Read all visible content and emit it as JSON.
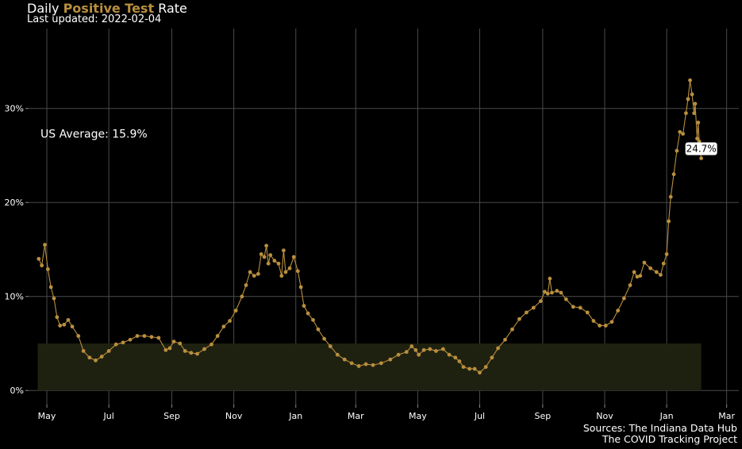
{
  "header": {
    "title_prefix": "Daily ",
    "title_highlight": "Positive Test",
    "title_suffix": " Rate",
    "subtitle": "Last updated: 2022-02-04"
  },
  "caption": {
    "line1": "Sources: The Indiana Data Hub",
    "line2": "The COVID Tracking Project"
  },
  "colors": {
    "background": "#000000",
    "series": "#b98f3e",
    "band": "#1f2110",
    "grid": "#4a4a4a"
  },
  "chart_data": {
    "type": "line",
    "title": "Daily Positive Test Rate",
    "subtitle": "Last updated: 2022-02-04",
    "x_axis": {
      "type": "date",
      "range": [
        "2020-04-13",
        "2022-03-13"
      ],
      "ticks": [
        {
          "date": "2020-05-01",
          "label": "May"
        },
        {
          "date": "2020-07-01",
          "label": "Jul"
        },
        {
          "date": "2020-09-01",
          "label": "Sep"
        },
        {
          "date": "2020-11-01",
          "label": "Nov"
        },
        {
          "date": "2021-01-01",
          "label": "Jan"
        },
        {
          "date": "2021-03-01",
          "label": "Mar"
        },
        {
          "date": "2021-05-01",
          "label": "May"
        },
        {
          "date": "2021-07-01",
          "label": "Jul"
        },
        {
          "date": "2021-09-01",
          "label": "Sep"
        },
        {
          "date": "2021-11-01",
          "label": "Nov"
        },
        {
          "date": "2022-01-01",
          "label": "Jan"
        },
        {
          "date": "2022-03-01",
          "label": "Mar"
        }
      ]
    },
    "y_axis": {
      "range": [
        -1.5,
        38.5
      ],
      "ticks": [
        {
          "value": 0,
          "label": "0%"
        },
        {
          "value": 10,
          "label": "10%"
        },
        {
          "value": 20,
          "label": "20%"
        },
        {
          "value": 30,
          "label": "30%"
        }
      ]
    },
    "grid": true,
    "band": {
      "x_start": "2020-04-22",
      "x_end": "2022-02-04",
      "y_min": 0,
      "y_max": 5
    },
    "annotation": {
      "text": "US Average: 15.9%",
      "date": "2020-04-13",
      "value": 27.3
    },
    "end_label": {
      "text": "24.7%",
      "date": "2022-02-04",
      "value": 24.7
    },
    "series": [
      {
        "points": [
          [
            "2020-04-23",
            14.0
          ],
          [
            "2020-04-26",
            13.3
          ],
          [
            "2020-04-29",
            15.5
          ],
          [
            "2020-05-02",
            12.9
          ],
          [
            "2020-05-05",
            11.0
          ],
          [
            "2020-05-08",
            9.8
          ],
          [
            "2020-05-11",
            7.8
          ],
          [
            "2020-05-14",
            6.9
          ],
          [
            "2020-05-18",
            7.0
          ],
          [
            "2020-05-22",
            7.5
          ],
          [
            "2020-05-26",
            6.8
          ],
          [
            "2020-06-01",
            5.8
          ],
          [
            "2020-06-06",
            4.2
          ],
          [
            "2020-06-12",
            3.5
          ],
          [
            "2020-06-18",
            3.2
          ],
          [
            "2020-06-24",
            3.6
          ],
          [
            "2020-07-01",
            4.2
          ],
          [
            "2020-07-08",
            4.9
          ],
          [
            "2020-07-15",
            5.1
          ],
          [
            "2020-07-22",
            5.4
          ],
          [
            "2020-07-29",
            5.8
          ],
          [
            "2020-08-05",
            5.8
          ],
          [
            "2020-08-12",
            5.7
          ],
          [
            "2020-08-19",
            5.6
          ],
          [
            "2020-08-26",
            4.3
          ],
          [
            "2020-08-30",
            4.5
          ],
          [
            "2020-09-03",
            5.2
          ],
          [
            "2020-09-09",
            5.0
          ],
          [
            "2020-09-14",
            4.2
          ],
          [
            "2020-09-20",
            4.0
          ],
          [
            "2020-09-26",
            3.9
          ],
          [
            "2020-10-03",
            4.4
          ],
          [
            "2020-10-10",
            4.9
          ],
          [
            "2020-10-16",
            5.8
          ],
          [
            "2020-10-22",
            6.8
          ],
          [
            "2020-10-28",
            7.4
          ],
          [
            "2020-11-03",
            8.5
          ],
          [
            "2020-11-09",
            10.0
          ],
          [
            "2020-11-13",
            11.2
          ],
          [
            "2020-11-17",
            12.6
          ],
          [
            "2020-11-21",
            12.2
          ],
          [
            "2020-11-25",
            12.4
          ],
          [
            "2020-11-28",
            14.5
          ],
          [
            "2020-12-01",
            14.2
          ],
          [
            "2020-12-03",
            15.4
          ],
          [
            "2020-12-05",
            13.5
          ],
          [
            "2020-12-07",
            14.4
          ],
          [
            "2020-12-11",
            13.8
          ],
          [
            "2020-12-15",
            13.5
          ],
          [
            "2020-12-18",
            12.2
          ],
          [
            "2020-12-20",
            14.9
          ],
          [
            "2020-12-22",
            12.6
          ],
          [
            "2020-12-26",
            13.0
          ],
          [
            "2020-12-30",
            14.2
          ],
          [
            "2021-01-03",
            12.7
          ],
          [
            "2021-01-06",
            11.0
          ],
          [
            "2021-01-09",
            9.0
          ],
          [
            "2021-01-13",
            8.2
          ],
          [
            "2021-01-18",
            7.5
          ],
          [
            "2021-01-23",
            6.5
          ],
          [
            "2021-01-29",
            5.5
          ],
          [
            "2021-02-04",
            4.7
          ],
          [
            "2021-02-11",
            3.8
          ],
          [
            "2021-02-18",
            3.3
          ],
          [
            "2021-02-25",
            2.9
          ],
          [
            "2021-03-04",
            2.6
          ],
          [
            "2021-03-11",
            2.8
          ],
          [
            "2021-03-18",
            2.7
          ],
          [
            "2021-03-26",
            2.9
          ],
          [
            "2021-04-04",
            3.3
          ],
          [
            "2021-04-12",
            3.8
          ],
          [
            "2021-04-20",
            4.1
          ],
          [
            "2021-04-25",
            4.7
          ],
          [
            "2021-04-29",
            4.3
          ],
          [
            "2021-05-02",
            3.8
          ],
          [
            "2021-05-07",
            4.3
          ],
          [
            "2021-05-13",
            4.4
          ],
          [
            "2021-05-19",
            4.2
          ],
          [
            "2021-05-26",
            4.4
          ],
          [
            "2021-06-01",
            3.8
          ],
          [
            "2021-06-07",
            3.5
          ],
          [
            "2021-06-11",
            3.1
          ],
          [
            "2021-06-15",
            2.5
          ],
          [
            "2021-06-21",
            2.3
          ],
          [
            "2021-06-26",
            2.3
          ],
          [
            "2021-07-01",
            1.9
          ],
          [
            "2021-07-07",
            2.5
          ],
          [
            "2021-07-13",
            3.5
          ],
          [
            "2021-07-19",
            4.5
          ],
          [
            "2021-07-26",
            5.4
          ],
          [
            "2021-08-02",
            6.5
          ],
          [
            "2021-08-09",
            7.6
          ],
          [
            "2021-08-16",
            8.3
          ],
          [
            "2021-08-23",
            8.8
          ],
          [
            "2021-08-30",
            9.5
          ],
          [
            "2021-09-03",
            10.5
          ],
          [
            "2021-09-06",
            10.3
          ],
          [
            "2021-09-08",
            11.9
          ],
          [
            "2021-09-10",
            10.4
          ],
          [
            "2021-09-15",
            10.6
          ],
          [
            "2021-09-19",
            10.4
          ],
          [
            "2021-09-24",
            9.7
          ],
          [
            "2021-10-01",
            8.9
          ],
          [
            "2021-10-08",
            8.8
          ],
          [
            "2021-10-15",
            8.3
          ],
          [
            "2021-10-21",
            7.4
          ],
          [
            "2021-10-27",
            6.9
          ],
          [
            "2021-11-02",
            6.9
          ],
          [
            "2021-11-08",
            7.3
          ],
          [
            "2021-11-14",
            8.5
          ],
          [
            "2021-11-20",
            9.8
          ],
          [
            "2021-11-26",
            11.2
          ],
          [
            "2021-11-30",
            12.6
          ],
          [
            "2021-12-03",
            12.1
          ],
          [
            "2021-12-06",
            12.2
          ],
          [
            "2021-12-10",
            13.6
          ],
          [
            "2021-12-16",
            13.0
          ],
          [
            "2021-12-22",
            12.6
          ],
          [
            "2021-12-26",
            12.3
          ],
          [
            "2021-12-29",
            13.5
          ],
          [
            "2022-01-01",
            14.5
          ],
          [
            "2022-01-03",
            18.0
          ],
          [
            "2022-01-05",
            20.6
          ],
          [
            "2022-01-08",
            23.0
          ],
          [
            "2022-01-11",
            25.5
          ],
          [
            "2022-01-14",
            27.5
          ],
          [
            "2022-01-17",
            27.3
          ],
          [
            "2022-01-20",
            29.5
          ],
          [
            "2022-01-22",
            31.0
          ],
          [
            "2022-01-24",
            33.0
          ],
          [
            "2022-01-26",
            31.5
          ],
          [
            "2022-01-28",
            29.5
          ],
          [
            "2022-01-29",
            30.5
          ],
          [
            "2022-01-31",
            26.8
          ],
          [
            "2022-02-01",
            28.5
          ],
          [
            "2022-02-02",
            26.5
          ],
          [
            "2022-02-04",
            24.7
          ]
        ]
      }
    ]
  }
}
